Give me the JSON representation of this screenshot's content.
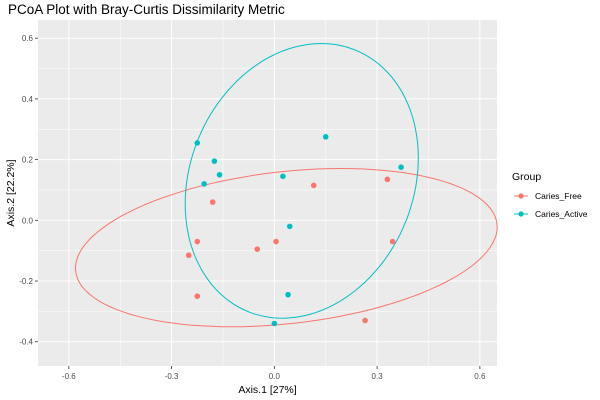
{
  "chart_data": {
    "type": "scatter",
    "title": "PCoA Plot with Bray-Curtis Dissimilarity Metric",
    "xlabel": "Axis.1   [27%]",
    "ylabel": "Axis.2   [22.2%]",
    "xlim": [
      -0.69,
      0.65
    ],
    "ylim": [
      -0.48,
      0.66
    ],
    "x_ticks": [
      -0.6,
      -0.3,
      0.0,
      0.3,
      0.6
    ],
    "x_tick_labels": [
      "-0.6",
      "-0.3",
      "0.0",
      "0.3",
      "0.6"
    ],
    "y_ticks": [
      -0.4,
      -0.2,
      0.0,
      0.2,
      0.4,
      0.6
    ],
    "y_tick_labels": [
      "-0.4",
      "-0.2",
      "0.0",
      "0.2",
      "0.4",
      "0.6"
    ],
    "grid": true,
    "legend": {
      "title": "Group",
      "position": "right"
    },
    "series": [
      {
        "name": "Caries_Free",
        "color": "#F8766D",
        "points": [
          {
            "x": -0.18,
            "y": 0.06
          },
          {
            "x": -0.225,
            "y": -0.07
          },
          {
            "x": -0.25,
            "y": -0.115
          },
          {
            "x": -0.225,
            "y": -0.25
          },
          {
            "x": -0.05,
            "y": -0.095
          },
          {
            "x": 0.005,
            "y": -0.07
          },
          {
            "x": 0.115,
            "y": 0.115
          },
          {
            "x": 0.33,
            "y": 0.135
          },
          {
            "x": 0.345,
            "y": -0.07
          },
          {
            "x": 0.265,
            "y": -0.33
          }
        ],
        "ellipse": {
          "cx": 0.035,
          "cy": -0.09,
          "rx": 0.62,
          "ry": 0.25,
          "angle_deg": 7.5
        }
      },
      {
        "name": "Caries_Active",
        "color": "#00BFC4",
        "points": [
          {
            "x": -0.225,
            "y": 0.255
          },
          {
            "x": -0.175,
            "y": 0.195
          },
          {
            "x": -0.205,
            "y": 0.12
          },
          {
            "x": -0.16,
            "y": 0.15
          },
          {
            "x": 0.15,
            "y": 0.275
          },
          {
            "x": 0.025,
            "y": 0.145
          },
          {
            "x": 0.37,
            "y": 0.175
          },
          {
            "x": 0.045,
            "y": -0.02
          },
          {
            "x": 0.04,
            "y": -0.245
          },
          {
            "x": 0.0,
            "y": -0.34
          }
        ],
        "ellipse": {
          "cx": 0.08,
          "cy": 0.13,
          "rx": 0.33,
          "ry": 0.46,
          "angle_deg": -15
        }
      }
    ]
  }
}
